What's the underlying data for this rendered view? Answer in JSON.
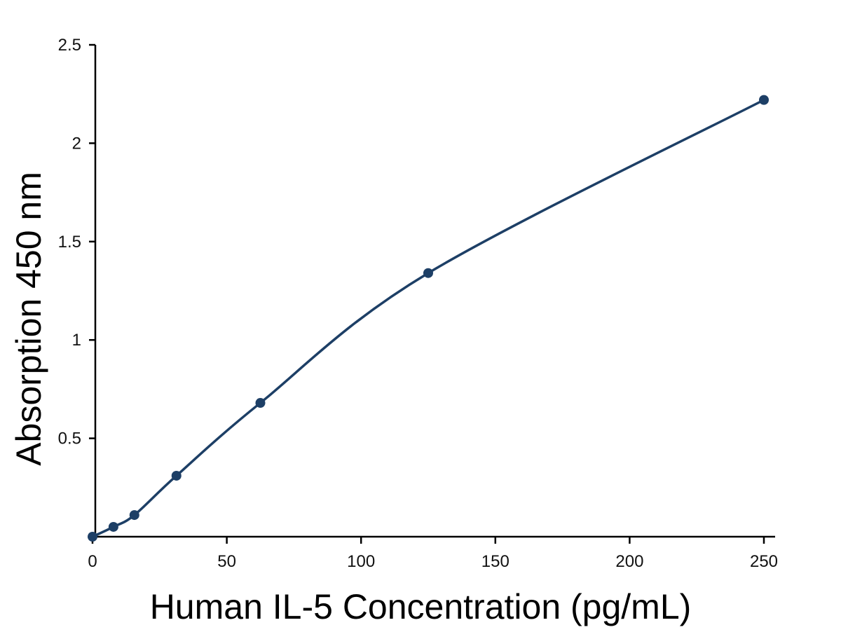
{
  "chart_data": {
    "type": "line",
    "title": "",
    "xlabel": "Human IL-5 Concentration (pg/mL)",
    "ylabel": "Absorption 450 nm",
    "xlim": [
      0,
      250
    ],
    "ylim": [
      0,
      2.5
    ],
    "x_ticks": [
      0,
      50,
      100,
      150,
      200,
      250
    ],
    "x_tick_labels": [
      "0",
      "50",
      "100",
      "150",
      "200",
      "250"
    ],
    "y_ticks": [
      0.5,
      1,
      1.5,
      2,
      2.5
    ],
    "y_tick_labels": [
      "0.5",
      "1",
      "1.5",
      "2",
      "2.5"
    ],
    "grid": false,
    "legend": "none",
    "series": [
      {
        "color": "#1d3f66",
        "x": [
          0,
          7.8,
          15.6,
          31.25,
          62.5,
          125,
          250
        ],
        "y": [
          0.0,
          0.05,
          0.11,
          0.31,
          0.68,
          1.34,
          2.22
        ]
      }
    ]
  }
}
